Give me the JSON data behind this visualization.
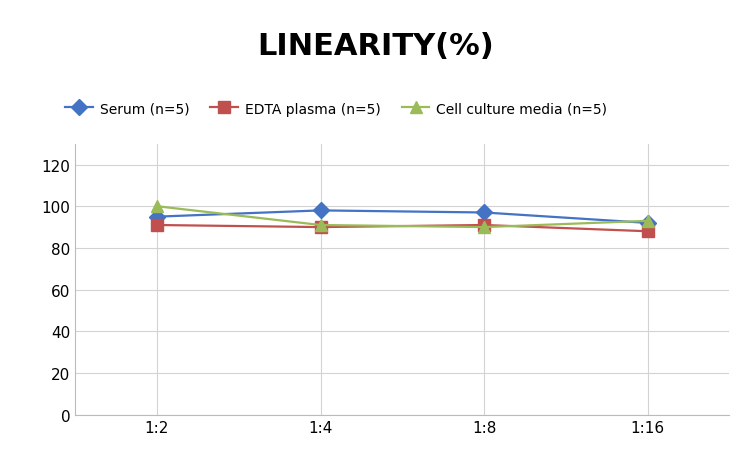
{
  "title": "LINEARITY(%)",
  "title_fontsize": 22,
  "title_fontweight": "bold",
  "x_labels": [
    "1:2",
    "1:4",
    "1:8",
    "1:16"
  ],
  "serum": [
    95,
    98,
    97,
    92
  ],
  "edta_plasma": [
    91,
    90,
    91,
    88
  ],
  "cell_culture": [
    100,
    91,
    90,
    93
  ],
  "serum_color": "#4472C4",
  "edta_color": "#C0504D",
  "cell_color": "#9BBB59",
  "ylim": [
    0,
    130
  ],
  "yticks": [
    0,
    20,
    40,
    60,
    80,
    100,
    120
  ],
  "legend_labels": [
    "Serum (n=5)",
    "EDTA plasma (n=5)",
    "Cell culture media (n=5)"
  ],
  "bg_color": "#FFFFFF",
  "grid_color": "#D3D3D3",
  "linewidth": 1.6,
  "markersize": 8,
  "tick_fontsize": 11,
  "legend_fontsize": 10
}
